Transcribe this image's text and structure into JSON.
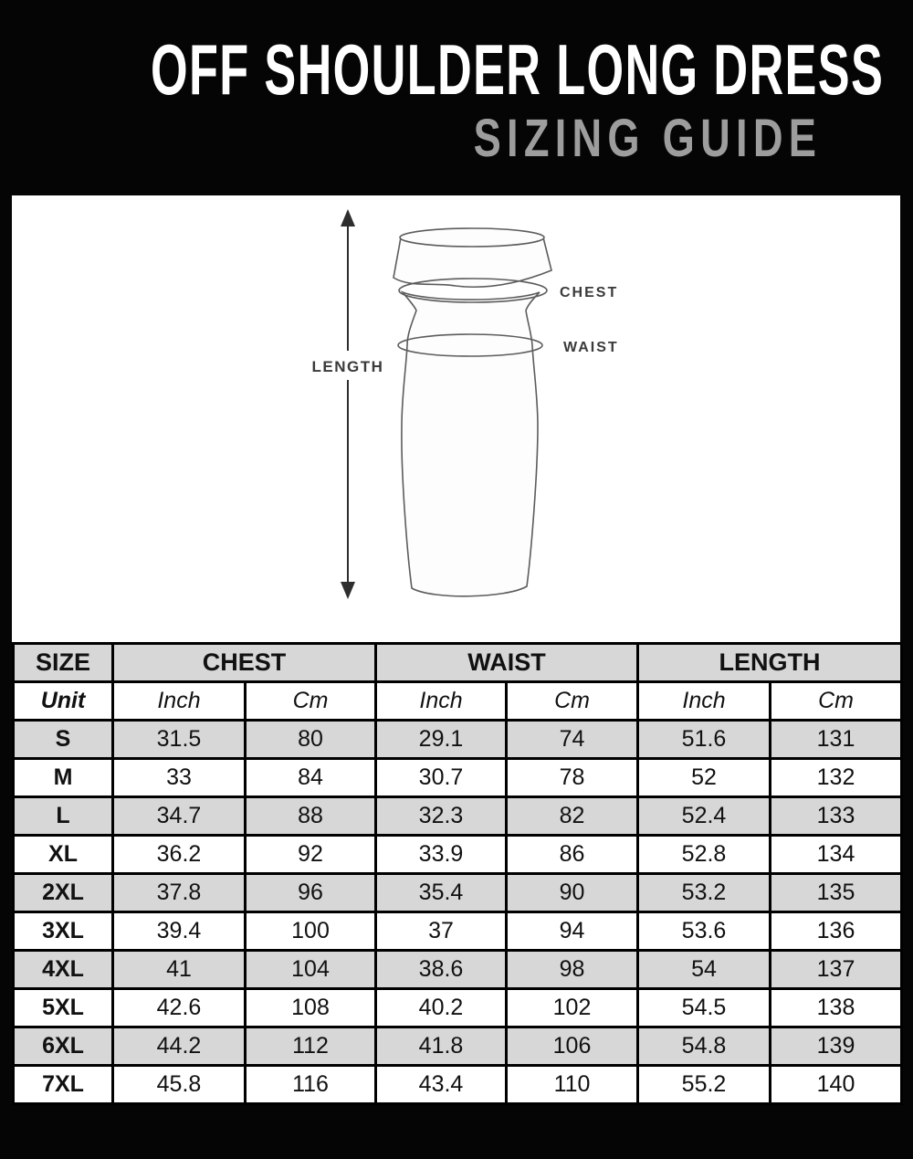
{
  "header": {
    "title": "OFF SHOULDER LONG DRESS",
    "subtitle": "SIZING GUIDE"
  },
  "diagram": {
    "labels": {
      "length": "LENGTH",
      "chest": "CHEST",
      "waist": "WAIST"
    }
  },
  "table": {
    "groups": [
      "SIZE",
      "CHEST",
      "WAIST",
      "LENGTH"
    ],
    "unit_row": {
      "label": "Unit",
      "units": [
        "Inch",
        "Cm",
        "Inch",
        "Cm",
        "Inch",
        "Cm"
      ]
    },
    "rows": [
      {
        "size": "S",
        "values": [
          "31.5",
          "80",
          "29.1",
          "74",
          "51.6",
          "131"
        ]
      },
      {
        "size": "M",
        "values": [
          "33",
          "84",
          "30.7",
          "78",
          "52",
          "132"
        ]
      },
      {
        "size": "L",
        "values": [
          "34.7",
          "88",
          "32.3",
          "82",
          "52.4",
          "133"
        ]
      },
      {
        "size": "XL",
        "values": [
          "36.2",
          "92",
          "33.9",
          "86",
          "52.8",
          "134"
        ]
      },
      {
        "size": "2XL",
        "values": [
          "37.8",
          "96",
          "35.4",
          "90",
          "53.2",
          "135"
        ]
      },
      {
        "size": "3XL",
        "values": [
          "39.4",
          "100",
          "37",
          "94",
          "53.6",
          "136"
        ]
      },
      {
        "size": "4XL",
        "values": [
          "41",
          "104",
          "38.6",
          "98",
          "54",
          "137"
        ]
      },
      {
        "size": "5XL",
        "values": [
          "42.6",
          "108",
          "40.2",
          "102",
          "54.5",
          "138"
        ]
      },
      {
        "size": "6XL",
        "values": [
          "44.2",
          "112",
          "41.8",
          "106",
          "54.8",
          "139"
        ]
      },
      {
        "size": "7XL",
        "values": [
          "45.8",
          "116",
          "43.4",
          "110",
          "55.2",
          "140"
        ]
      }
    ]
  },
  "colors": {
    "background": "#050505",
    "title_text": "#ffffff",
    "subtitle_text": "#9d9d9d",
    "row_gray": "#d7d7d7",
    "row_white": "#ffffff",
    "grid_line": "#000000",
    "sketch_line": "#5c5c5c"
  }
}
